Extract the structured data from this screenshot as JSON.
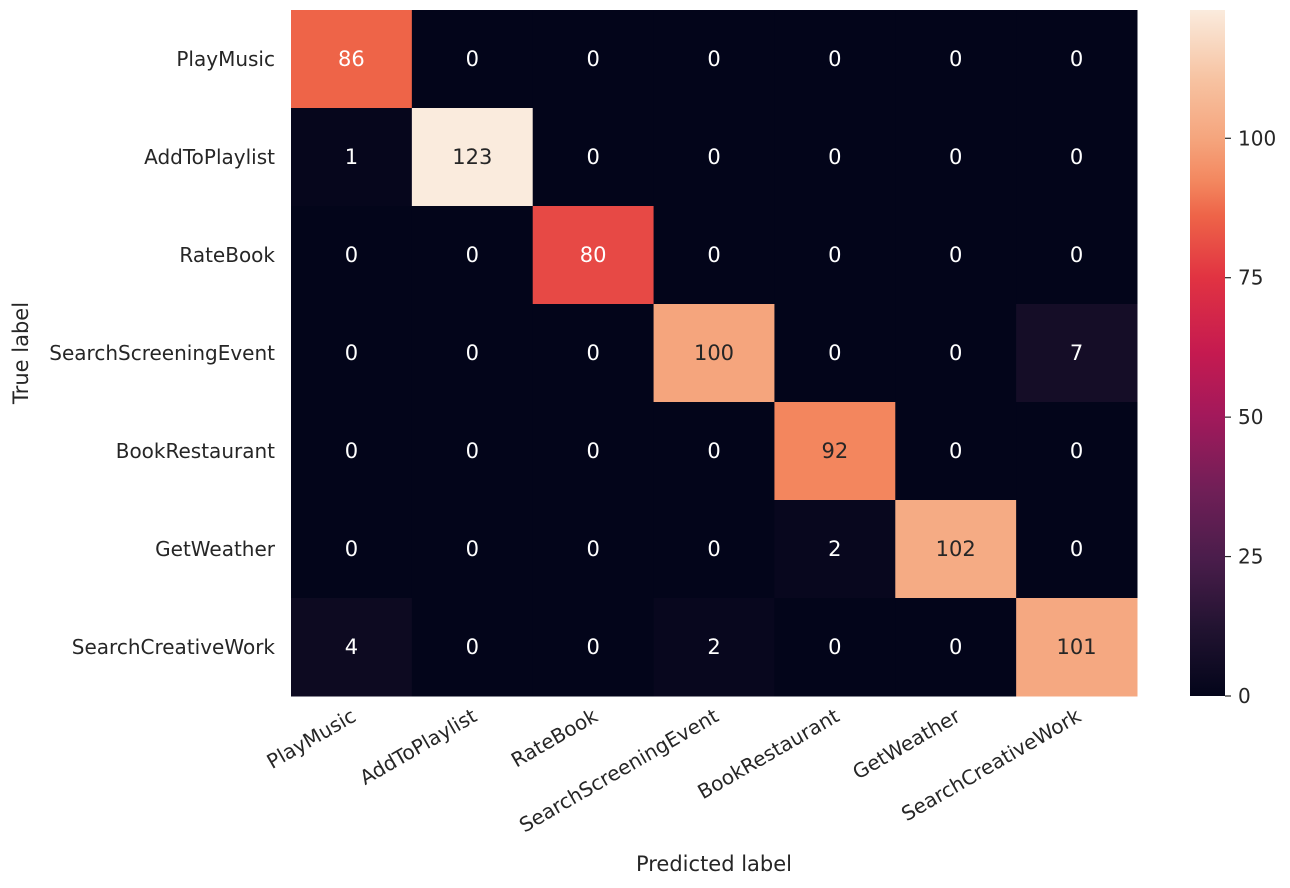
{
  "chart_data": {
    "type": "heatmap",
    "title": "",
    "xlabel": "Predicted label",
    "ylabel": "True label",
    "x_categories": [
      "PlayMusic",
      "AddToPlaylist",
      "RateBook",
      "SearchScreeningEvent",
      "BookRestaurant",
      "GetWeather",
      "SearchCreativeWork"
    ],
    "y_categories": [
      "PlayMusic",
      "AddToPlaylist",
      "RateBook",
      "SearchScreeningEvent",
      "BookRestaurant",
      "GetWeather",
      "SearchCreativeWork"
    ],
    "values": [
      [
        86,
        0,
        0,
        0,
        0,
        0,
        0
      ],
      [
        1,
        123,
        0,
        0,
        0,
        0,
        0
      ],
      [
        0,
        0,
        80,
        0,
        0,
        0,
        0
      ],
      [
        0,
        0,
        0,
        100,
        0,
        0,
        7
      ],
      [
        0,
        0,
        0,
        0,
        92,
        0,
        0
      ],
      [
        0,
        0,
        0,
        0,
        2,
        102,
        0
      ],
      [
        4,
        0,
        0,
        2,
        0,
        0,
        101
      ]
    ],
    "colormap": "rocket",
    "colorbar": {
      "range": [
        0,
        123
      ],
      "ticks": [
        0,
        25,
        50,
        75,
        100
      ]
    },
    "annotations": true,
    "grid": false
  }
}
